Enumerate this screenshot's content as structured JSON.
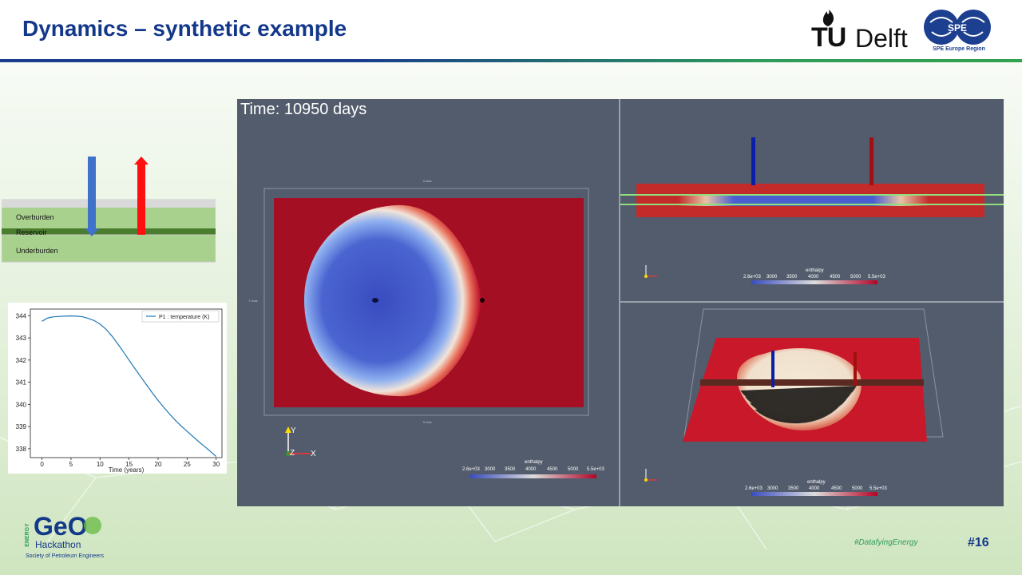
{
  "slide": {
    "title": "Dynamics – synthetic example",
    "page_number": "#16",
    "hashtag": "#DatafyingEnergy"
  },
  "logos": {
    "tudelft_tu": "TU",
    "tudelft_delft": "Delft",
    "spe_caption": "SPE Europe Region",
    "spe_mark": "SPE",
    "geo_energy": "ENERGY",
    "geo_name": "GeO",
    "geo_hackathon": "Hackathon",
    "geo_society": "Society of Petroleum Engineers"
  },
  "schematic": {
    "layers": [
      "Overburden",
      "Reservoir",
      "Underburden"
    ],
    "colors": {
      "injection": "#3f72c8",
      "production": "#ff1010",
      "layer": "#a9d18e",
      "reservoir": "#4a7d2e"
    }
  },
  "viewer": {
    "time_label": "Time: 10950 days",
    "colorbar": {
      "title": "enthalpy",
      "ticks": [
        "2.6e+03",
        "3000",
        "3500",
        "4000",
        "4500",
        "5000",
        "5.5e+03"
      ]
    },
    "axis_labels": {
      "x": "X Axis",
      "y": "Y Axis"
    },
    "triad": {
      "x": "X",
      "y": "Y",
      "z": "Z"
    }
  },
  "chart_data": {
    "type": "line",
    "legend": "P1 : temperature (K)",
    "legend_position": "top-right",
    "xlabel": "Time (years)",
    "ylabel": "",
    "xlim": [
      -2,
      31
    ],
    "ylim": [
      337.6,
      344.3
    ],
    "xticks": [
      0,
      5,
      10,
      15,
      20,
      25,
      30
    ],
    "yticks": [
      338,
      339,
      340,
      341,
      342,
      343,
      344
    ],
    "grid": false,
    "series": [
      {
        "name": "P1 : temperature (K)",
        "color": "#1f77b4",
        "x": [
          0,
          1,
          2,
          3,
          4,
          5,
          6,
          7,
          8,
          9,
          10,
          11,
          12,
          13,
          14,
          15,
          16,
          17,
          18,
          19,
          20,
          21,
          22,
          23,
          24,
          25,
          26,
          27,
          28,
          29,
          30
        ],
        "y": [
          343.75,
          343.9,
          343.95,
          343.97,
          343.98,
          343.99,
          343.98,
          343.95,
          343.88,
          343.78,
          343.62,
          343.4,
          343.1,
          342.75,
          342.38,
          342.0,
          341.62,
          341.25,
          340.88,
          340.52,
          340.18,
          339.86,
          339.56,
          339.28,
          339.02,
          338.78,
          338.55,
          338.32,
          338.1,
          337.88,
          337.65
        ]
      }
    ]
  }
}
